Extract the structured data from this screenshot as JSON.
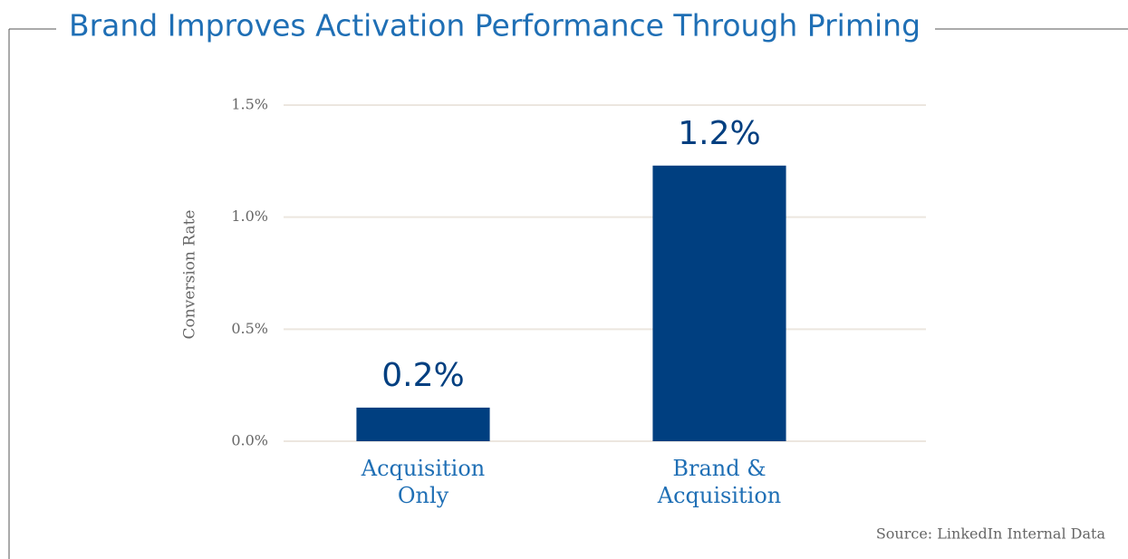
{
  "chart_data": {
    "type": "bar",
    "title": "Brand Improves Activation Performance Through Priming",
    "ylabel": "Conversion Rate",
    "categories": [
      "Acquisition Only",
      "Brand & Acquisition"
    ],
    "values": [
      0.15,
      1.23
    ],
    "value_labels": [
      "0.2%",
      "1.2%"
    ],
    "color": "#003f80",
    "ylim": [
      0,
      1.5
    ],
    "yticks": [
      {
        "value": 0,
        "label": "0.0%"
      },
      {
        "value": 0.5,
        "label": "0.5%"
      },
      {
        "value": 1,
        "label": "1.0%"
      },
      {
        "value": 1.5,
        "label": "1.5%"
      }
    ],
    "grid": true,
    "source": "Source: LinkedIn Internal Data"
  }
}
